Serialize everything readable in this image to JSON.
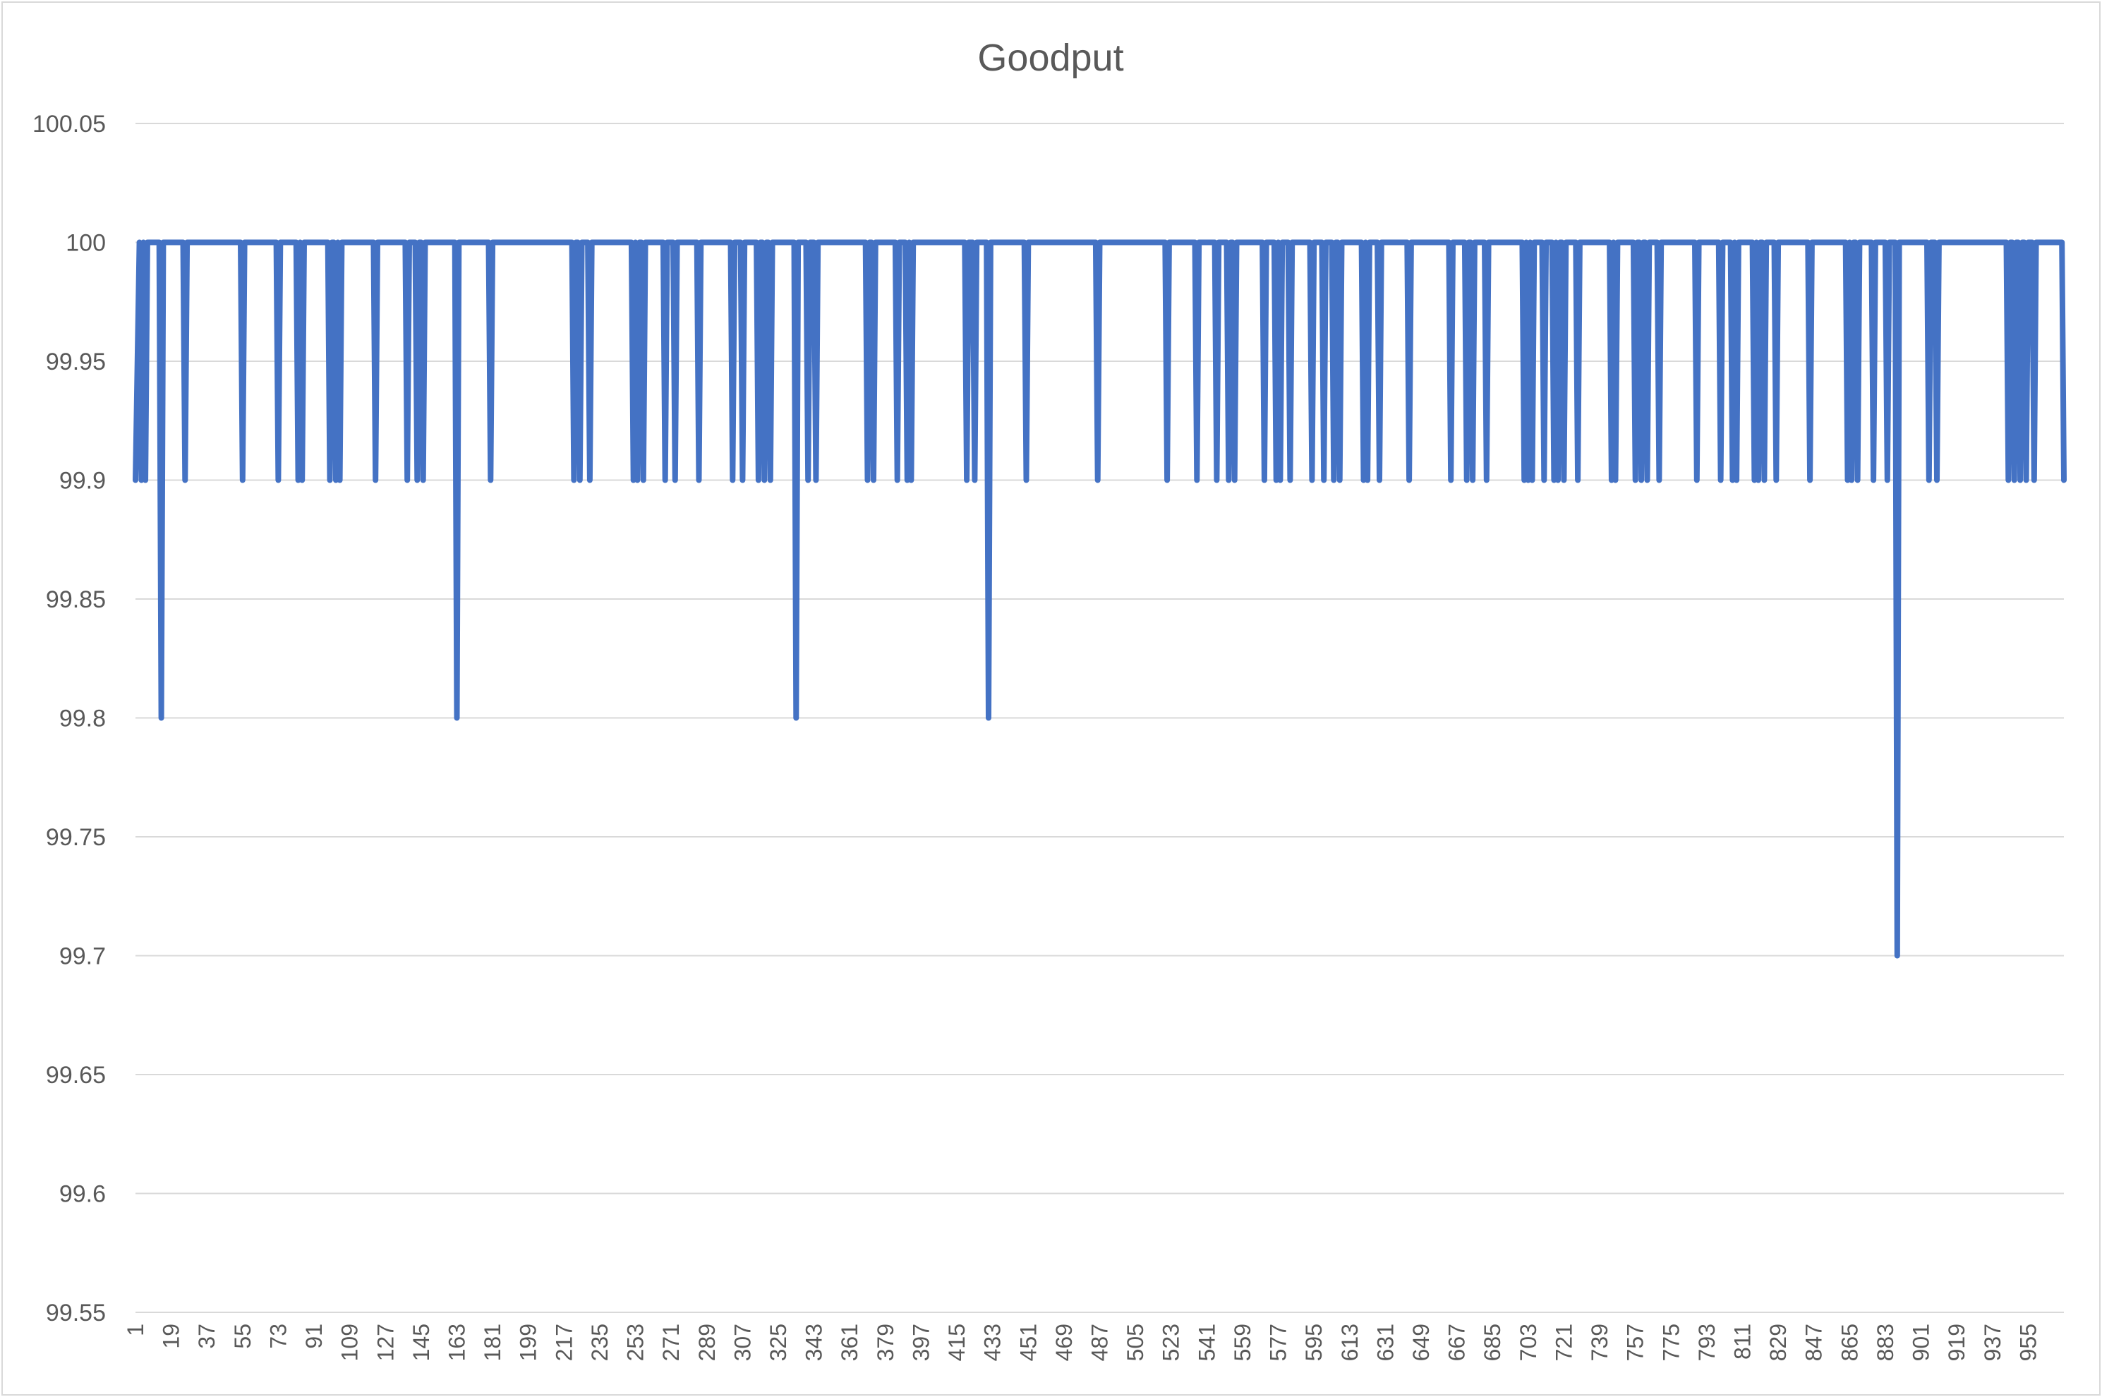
{
  "chart_data": {
    "type": "line",
    "title": "Goodput",
    "xlabel": "",
    "ylabel": "",
    "ylim": [
      99.55,
      100.05
    ],
    "yticks": [
      "100.05",
      "100",
      "99.95",
      "99.9",
      "99.85",
      "99.8",
      "99.75",
      "99.7",
      "99.65",
      "99.6",
      "99.55"
    ],
    "xlim": [
      1,
      973
    ],
    "xticks": [
      "1",
      "19",
      "37",
      "55",
      "73",
      "91",
      "109",
      "127",
      "145",
      "163",
      "181",
      "199",
      "217",
      "235",
      "253",
      "271",
      "289",
      "307",
      "325",
      "343",
      "361",
      "379",
      "397",
      "415",
      "433",
      "451",
      "469",
      "487",
      "505",
      "523",
      "541",
      "559",
      "577",
      "595",
      "613",
      "631",
      "649",
      "667",
      "685",
      "703",
      "721",
      "739",
      "757",
      "775",
      "793",
      "811",
      "829",
      "847",
      "865",
      "883",
      "901",
      "919",
      "937",
      "955"
    ],
    "grid": true,
    "legend": "none",
    "series": [
      {
        "color": "#4472c4",
        "baseline": 100,
        "note_dips": "x positions where goodput drops from 100 to the given value",
        "dips": [
          [
            1,
            99.9
          ],
          [
            4,
            99.9
          ],
          [
            6,
            99.9
          ],
          [
            14,
            99.8
          ],
          [
            26,
            99.9
          ],
          [
            55,
            99.9
          ],
          [
            73,
            99.9
          ],
          [
            83,
            99.9
          ],
          [
            85,
            99.9
          ],
          [
            99,
            99.9
          ],
          [
            102,
            99.9
          ],
          [
            104,
            99.9
          ],
          [
            122,
            99.9
          ],
          [
            138,
            99.9
          ],
          [
            143,
            99.9
          ],
          [
            146,
            99.9
          ],
          [
            163,
            99.8
          ],
          [
            180,
            99.9
          ],
          [
            222,
            99.9
          ],
          [
            225,
            99.9
          ],
          [
            230,
            99.9
          ],
          [
            252,
            99.9
          ],
          [
            254,
            99.9
          ],
          [
            257,
            99.9
          ],
          [
            268,
            99.9
          ],
          [
            273,
            99.9
          ],
          [
            285,
            99.9
          ],
          [
            302,
            99.9
          ],
          [
            307,
            99.9
          ],
          [
            315,
            99.9
          ],
          [
            318,
            99.9
          ],
          [
            321,
            99.9
          ],
          [
            334,
            99.8
          ],
          [
            340,
            99.9
          ],
          [
            344,
            99.9
          ],
          [
            370,
            99.9
          ],
          [
            373,
            99.9
          ],
          [
            385,
            99.9
          ],
          [
            390,
            99.9
          ],
          [
            392,
            99.9
          ],
          [
            420,
            99.9
          ],
          [
            424,
            99.9
          ],
          [
            431,
            99.8
          ],
          [
            450,
            99.9
          ],
          [
            486,
            99.9
          ],
          [
            521,
            99.9
          ],
          [
            536,
            99.9
          ],
          [
            546,
            99.9
          ],
          [
            552,
            99.9
          ],
          [
            555,
            99.9
          ],
          [
            570,
            99.9
          ],
          [
            576,
            99.9
          ],
          [
            578,
            99.9
          ],
          [
            583,
            99.9
          ],
          [
            594,
            99.9
          ],
          [
            600,
            99.9
          ],
          [
            605,
            99.9
          ],
          [
            608,
            99.9
          ],
          [
            620,
            99.9
          ],
          [
            622,
            99.9
          ],
          [
            628,
            99.9
          ],
          [
            643,
            99.9
          ],
          [
            664,
            99.9
          ],
          [
            672,
            99.9
          ],
          [
            675,
            99.9
          ],
          [
            682,
            99.9
          ],
          [
            701,
            99.9
          ],
          [
            703,
            99.9
          ],
          [
            705,
            99.9
          ],
          [
            711,
            99.9
          ],
          [
            716,
            99.9
          ],
          [
            718,
            99.9
          ],
          [
            721,
            99.9
          ],
          [
            728,
            99.9
          ],
          [
            745,
            99.9
          ],
          [
            747,
            99.9
          ],
          [
            757,
            99.9
          ],
          [
            760,
            99.9
          ],
          [
            763,
            99.9
          ],
          [
            769,
            99.9
          ],
          [
            788,
            99.9
          ],
          [
            800,
            99.9
          ],
          [
            806,
            99.9
          ],
          [
            808,
            99.9
          ],
          [
            817,
            99.9
          ],
          [
            819,
            99.9
          ],
          [
            822,
            99.9
          ],
          [
            828,
            99.9
          ],
          [
            845,
            99.9
          ],
          [
            864,
            99.9
          ],
          [
            866,
            99.9
          ],
          [
            869,
            99.9
          ],
          [
            877,
            99.9
          ],
          [
            884,
            99.9
          ],
          [
            889,
            99.7
          ],
          [
            905,
            99.9
          ],
          [
            909,
            99.9
          ],
          [
            945,
            99.9
          ],
          [
            948,
            99.9
          ],
          [
            951,
            99.9
          ],
          [
            954,
            99.9
          ],
          [
            958,
            99.9
          ],
          [
            973,
            99.9
          ]
        ]
      }
    ]
  }
}
